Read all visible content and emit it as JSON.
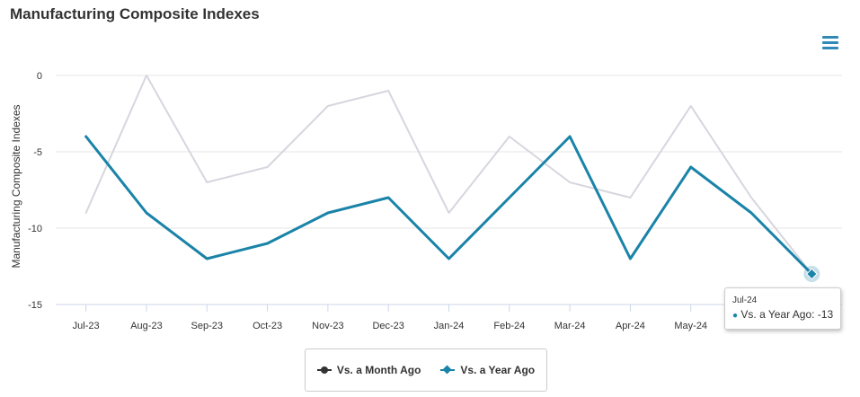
{
  "title": "Manufacturing Composite Indexes",
  "menu_icon": "hamburger-menu-icon",
  "colors": {
    "month_ago": "#333333",
    "year_ago": "#1a83a8",
    "month_ago_line": "#d6d6de",
    "grid": "#e6e6e6"
  },
  "chart_data": {
    "type": "line",
    "categories": [
      "Jul-23",
      "Aug-23",
      "Sep-23",
      "Oct-23",
      "Nov-23",
      "Dec-23",
      "Jan-24",
      "Feb-24",
      "Mar-24",
      "Apr-24",
      "May-24",
      "Jun-24",
      "Jul-24"
    ],
    "series": [
      {
        "name": "Vs. a Month Ago",
        "values": [
          -9,
          0,
          -7,
          -6,
          -2,
          -1,
          -9,
          -4,
          -7,
          -8,
          -2,
          -8,
          -13
        ]
      },
      {
        "name": "Vs. a Year Ago",
        "values": [
          -4,
          -9,
          -12,
          -11,
          -9,
          -8,
          -12,
          -8,
          -4,
          -12,
          -6,
          -9,
          -13
        ]
      }
    ],
    "ylabel": "Manufacturing Composite Indexes",
    "yticks": [
      0,
      -5,
      -10,
      -15
    ],
    "ylim": [
      -15,
      0
    ],
    "grid": true,
    "legend": "bottom-center"
  },
  "legend": {
    "items": [
      {
        "label": "Vs. a Month Ago"
      },
      {
        "label": "Vs. a Year Ago"
      }
    ]
  },
  "tooltip": {
    "x_label": "Jul-24",
    "row": "Vs. a Year Ago: -13"
  }
}
